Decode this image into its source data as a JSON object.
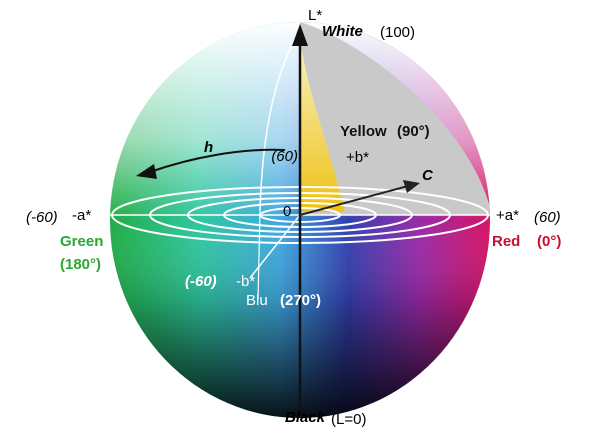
{
  "l_axis": {
    "label": "L*",
    "top_name": "White",
    "top_value": "(100)",
    "bottom_name": "Black",
    "bottom_value": "(L=0)"
  },
  "b_axis": {
    "positive_value": "(60)",
    "positive_label": "+b*",
    "positive_name": "Yellow",
    "positive_angle": "(90°)",
    "negative_value": "(-60)",
    "negative_label": "-b*",
    "negative_name": "Blu",
    "negative_angle": "(270°)"
  },
  "a_axis": {
    "negative_value": "(-60)",
    "negative_label": "-a*",
    "negative_name": "Green",
    "negative_angle": "(180°)",
    "positive_label": "+a*",
    "positive_value": "(60)",
    "positive_name": "Red",
    "positive_angle": "(0°)"
  },
  "hue_label": "h",
  "chroma_label": "C",
  "origin_label": "0"
}
